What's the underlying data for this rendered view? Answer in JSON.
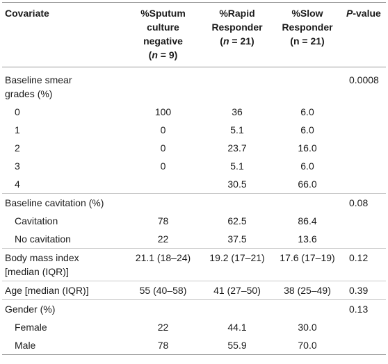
{
  "header": {
    "covariate": "Covariate",
    "col1": [
      "%Sputum",
      "culture negative",
      "(",
      "n",
      " = 9)"
    ],
    "col2": [
      "%Rapid",
      "Responder",
      "(",
      "n",
      " = 21)"
    ],
    "col3": [
      "%Slow",
      "Responder",
      "(n = 21)"
    ],
    "pvalue_italic": "P",
    "pvalue_rest": "-value"
  },
  "rows": [
    {
      "label": "Baseline smear",
      "label2": "grades (%)",
      "v1": "",
      "v2": "",
      "v3": "",
      "p": "0.0008"
    },
    {
      "label": "0",
      "v1": "100",
      "v2": "36",
      "v3": "6.0",
      "p": ""
    },
    {
      "label": "1",
      "v1": "0",
      "v2": "5.1",
      "v3": "6.0",
      "p": ""
    },
    {
      "label": "2",
      "v1": "0",
      "v2": "23.7",
      "v3": "16.0",
      "p": ""
    },
    {
      "label": "3",
      "v1": "0",
      "v2": "5.1",
      "v3": "6.0",
      "p": ""
    },
    {
      "label": "4",
      "v1": "",
      "v2": "30.5",
      "v3": "66.0",
      "p": ""
    },
    {
      "label": "Baseline cavitation (%)",
      "v1": "",
      "v2": "",
      "v3": "",
      "p": "0.08"
    },
    {
      "label": "Cavitation",
      "v1": "78",
      "v2": "62.5",
      "v3": "86.4",
      "p": ""
    },
    {
      "label": "No cavitation",
      "v1": "22",
      "v2": "37.5",
      "v3": "13.6",
      "p": ""
    },
    {
      "label": "Body mass index",
      "label2": "[median (IQR)]",
      "v1": "21.1 (18–24)",
      "v2": "19.2 (17–21)",
      "v3": "17.6 (17–19)",
      "p": "0.12"
    },
    {
      "label": "Age [median (IQR)]",
      "v1": "55 (40–58)",
      "v2": "41 (27–50)",
      "v3": "38 (25–49)",
      "p": "0.39"
    },
    {
      "label": "Gender (%)",
      "v1": "",
      "v2": "",
      "v3": "",
      "p": "0.13"
    },
    {
      "label": "Female",
      "v1": "22",
      "v2": "44.1",
      "v3": "30.0",
      "p": ""
    },
    {
      "label": "Male",
      "v1": "78",
      "v2": "55.9",
      "v3": "70.0",
      "p": ""
    }
  ]
}
